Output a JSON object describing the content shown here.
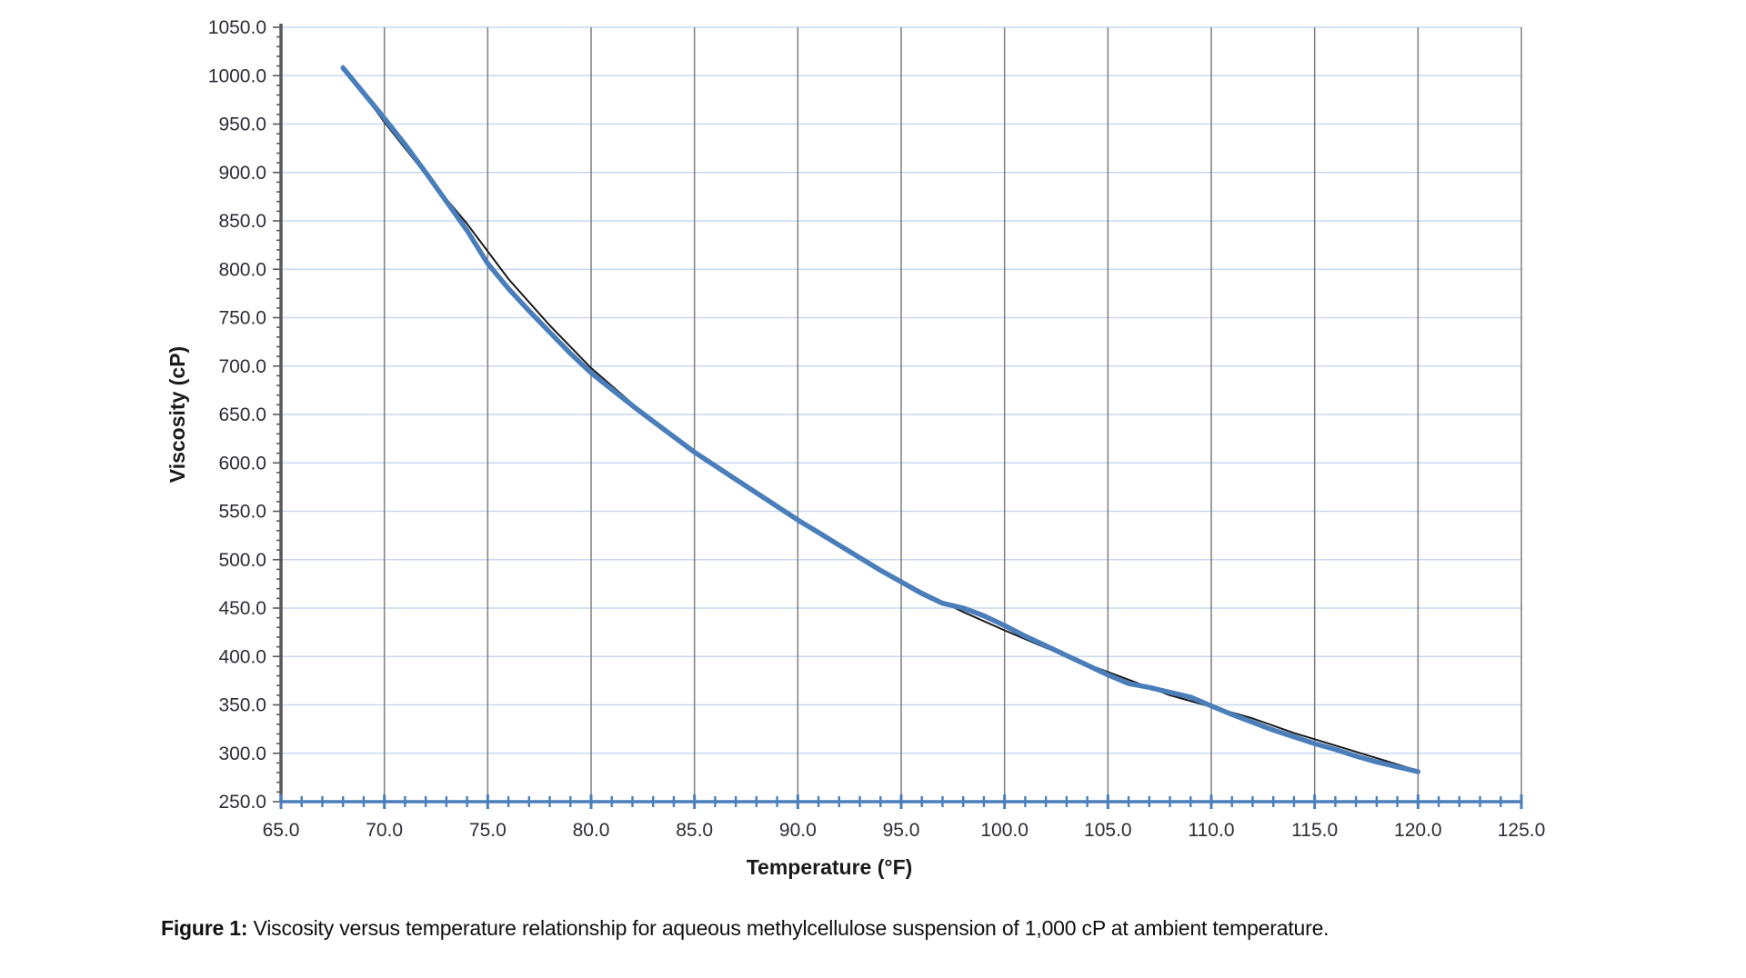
{
  "figure": {
    "caption_label": "Figure 1:",
    "caption_text": " Viscosity versus temperature relationship for aqueous methylcellulose suspension of 1,000 cP at ambient temperature."
  },
  "chart_data": {
    "type": "line",
    "title": "",
    "xlabel": "Temperature (°F)",
    "ylabel": "Viscosity (cP)",
    "xlim": [
      65,
      125
    ],
    "ylim": [
      250,
      1050
    ],
    "x_major_step": 5,
    "x_minor_step": 1,
    "y_major_step": 50,
    "y_minor_step": 10,
    "tick_format": "one_decimal",
    "legend": "none",
    "grid": {
      "horizontal_color": "#c9d8ee",
      "vertical_color": "#7f7f7f",
      "horizontal_on": true,
      "vertical_on": true
    },
    "axes": {
      "y_axis_color": "#595959",
      "x_axis_color": "#4a7ebb",
      "x_axis_marker": "plus-cross-every-1F",
      "label_color": "#2d2d38",
      "title_color": "#1a1a1a"
    },
    "series": [
      {
        "name": "measured-viscosity",
        "color": "#4a7ebb",
        "stroke_width": 5.5,
        "x": [
          68,
          69,
          70,
          71,
          72,
          73,
          74,
          75,
          76,
          77,
          78,
          79,
          80,
          81,
          82,
          83,
          84,
          85,
          86,
          87,
          88,
          89,
          90,
          91,
          92,
          93,
          94,
          95,
          96,
          97,
          98,
          99,
          100,
          101,
          102,
          103,
          104,
          105,
          106,
          107,
          108,
          109,
          110,
          111,
          112,
          113,
          114,
          115,
          116,
          117,
          118,
          119,
          120
        ],
        "values": [
          1008,
          982,
          956,
          929,
          900,
          870,
          840,
          806,
          780,
          757,
          735,
          713,
          693,
          676,
          659,
          643,
          627,
          611,
          597,
          583,
          569,
          555,
          541,
          528,
          515,
          502,
          489,
          477,
          465,
          455,
          450,
          442,
          432,
          421,
          411,
          401,
          391,
          381,
          372,
          368,
          363,
          358,
          349,
          340,
          332,
          324,
          317,
          310,
          304,
          297,
          291,
          286,
          281
        ]
      },
      {
        "name": "trend-fit",
        "color": "#1a1a1a",
        "stroke_width": 2,
        "x": [
          68,
          70,
          72,
          74,
          76,
          78,
          80,
          82,
          84,
          86,
          88,
          90,
          92,
          94,
          96,
          98,
          100,
          102,
          104,
          106,
          108,
          110,
          112,
          114,
          116,
          118,
          120
        ],
        "values": [
          1010,
          952,
          898,
          847,
          790,
          742,
          698,
          661,
          628,
          597,
          568,
          541,
          515,
          490,
          467,
          446,
          427,
          409,
          392,
          376,
          360,
          348,
          336,
          321,
          308,
          295,
          282
        ]
      }
    ]
  }
}
